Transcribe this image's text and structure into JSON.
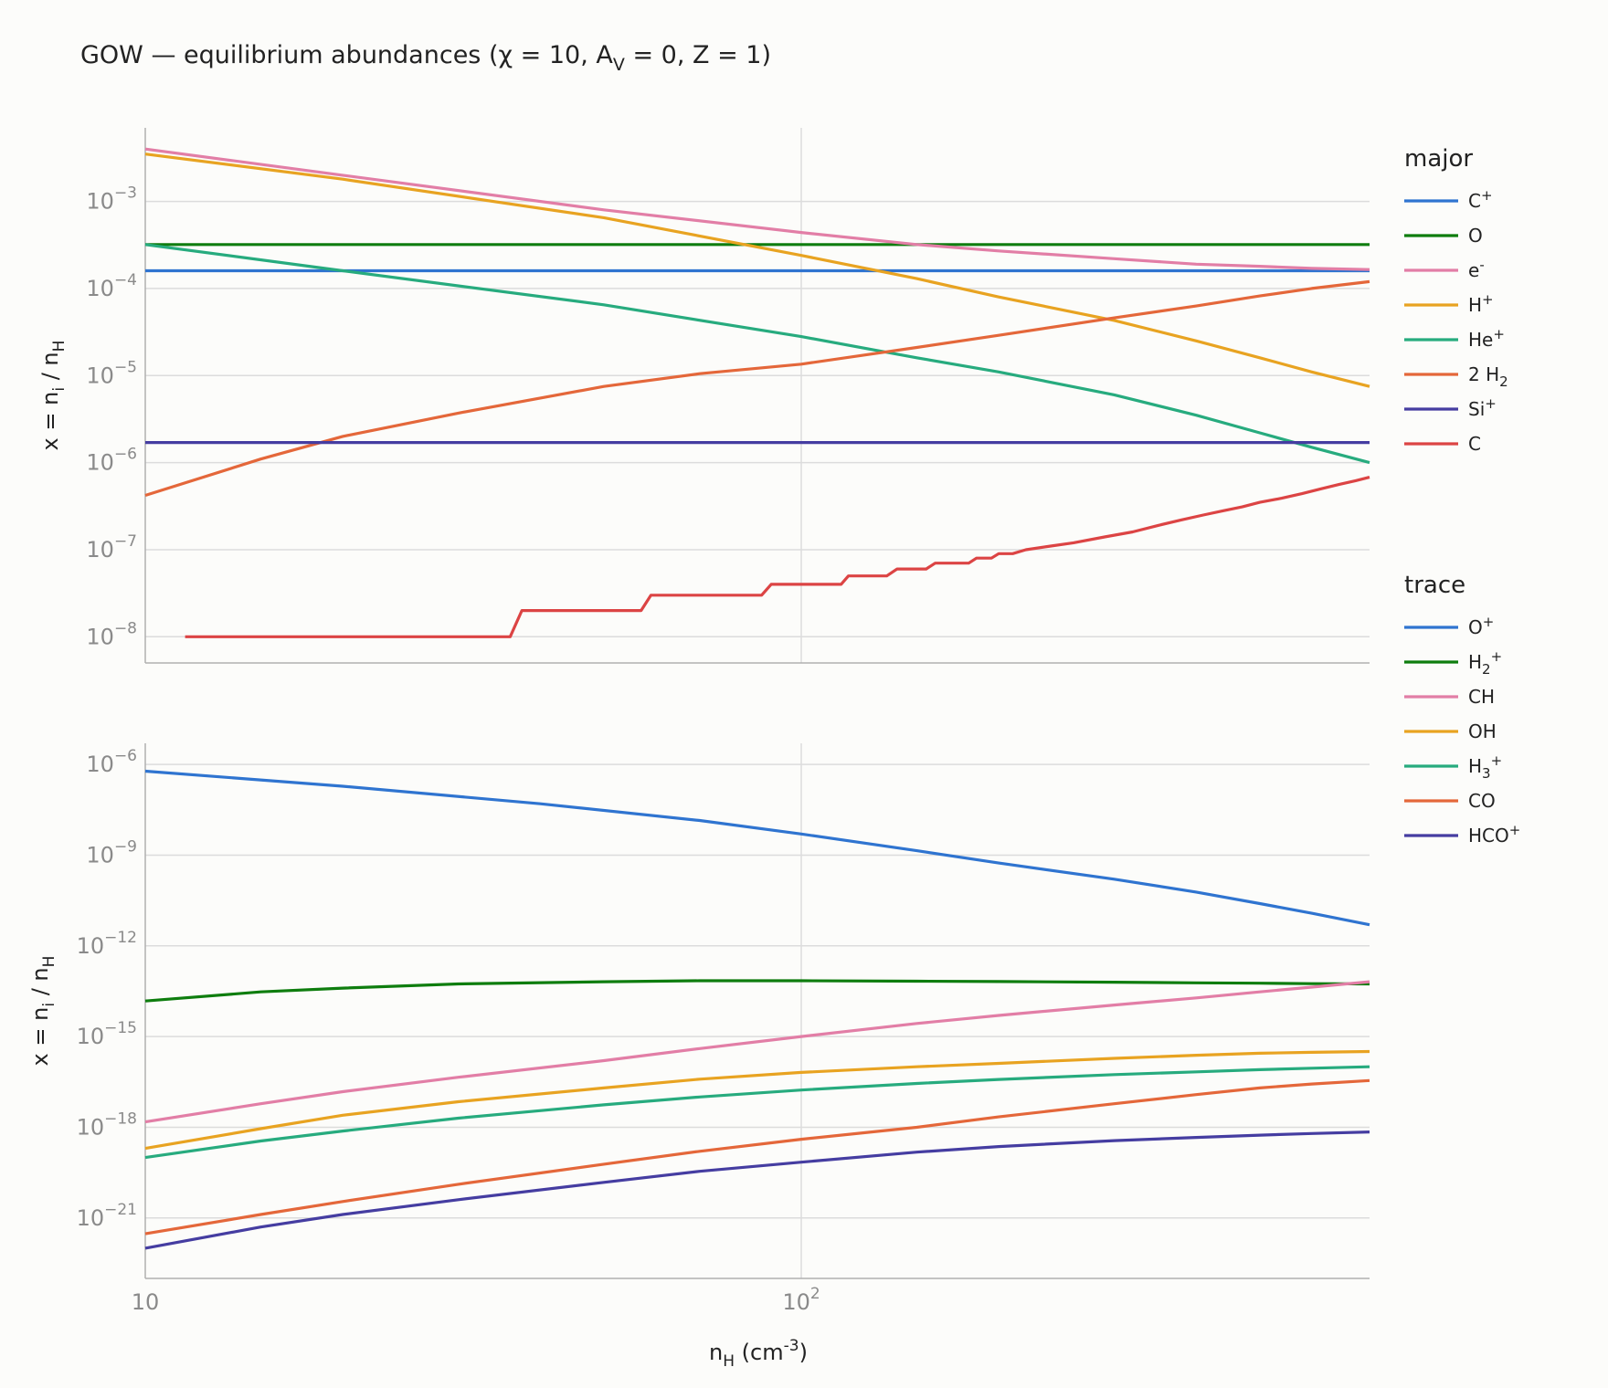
{
  "title": "GOW — equilibrium abundances (χ = 10, A_V = 0, Z = 1)",
  "chart_data": [
    {
      "panel": "top",
      "type": "line",
      "legend_title": "major",
      "legend_placement": "right",
      "xlabel": "",
      "ylabel": "x = n_i / n_H",
      "x_scale": "log",
      "y_scale": "log",
      "xlim": [
        10,
        735
      ],
      "ylim": [
        5e-09,
        0.007
      ],
      "yticks": [
        "1e-3",
        "1e-4",
        "1e-5",
        "1e-6",
        "1e-7",
        "1e-8"
      ],
      "grid": true,
      "series": [
        {
          "name": "C+",
          "color": "#2f74d0",
          "x": [
            10,
            735
          ],
          "y": [
            0.00016,
            0.00016
          ]
        },
        {
          "name": "O",
          "color": "#0e7d0e",
          "x": [
            10,
            735
          ],
          "y": [
            0.00032,
            0.00032
          ]
        },
        {
          "name": "e-",
          "color": "#e27ea6",
          "x": [
            10,
            20,
            50,
            100,
            150,
            200,
            300,
            400,
            500,
            600,
            735
          ],
          "y": [
            0.004,
            0.002,
            0.0008,
            0.00044,
            0.00032,
            0.00027,
            0.00022,
            0.00019,
            0.00018,
            0.00017,
            0.000165
          ]
        },
        {
          "name": "H+",
          "color": "#e8a321",
          "x": [
            10,
            20,
            50,
            100,
            150,
            200,
            300,
            400,
            500,
            600,
            735
          ],
          "y": [
            0.0035,
            0.0018,
            0.00065,
            0.00024,
            0.00013,
            8e-05,
            4.3e-05,
            2.5e-05,
            1.6e-05,
            1.1e-05,
            7.5e-06
          ]
        },
        {
          "name": "He+",
          "color": "#27ab7e",
          "x": [
            10,
            20,
            50,
            100,
            150,
            200,
            300,
            400,
            500,
            600,
            735
          ],
          "y": [
            0.00032,
            0.00016,
            6.5e-05,
            2.8e-05,
            1.6e-05,
            1.1e-05,
            6e-06,
            3.5e-06,
            2.2e-06,
            1.5e-06,
            1e-06
          ]
        },
        {
          "name": "2 H2",
          "color": "#e4673a",
          "x": [
            10,
            15,
            20,
            30,
            50,
            70,
            100,
            150,
            200,
            300,
            400,
            500,
            600,
            735
          ],
          "y": [
            4.2e-07,
            1.1e-06,
            2e-06,
            3.7e-06,
            7.5e-06,
            1.05e-05,
            1.35e-05,
            2.1e-05,
            2.9e-05,
            4.6e-05,
            6.3e-05,
            8.2e-05,
            0.0001,
            0.00012
          ]
        },
        {
          "name": "Si+",
          "color": "#453da1",
          "x": [
            10,
            735
          ],
          "y": [
            1.7e-06,
            1.7e-06
          ]
        },
        {
          "name": "C",
          "color": "#dc4444",
          "x": [
            11.5,
            36,
            37.5,
            57,
            59,
            87,
            90,
            115,
            118,
            135,
            140,
            155,
            160,
            180,
            185,
            195,
            200,
            210,
            220,
            240,
            260,
            290,
            320,
            350,
            380,
            410,
            440,
            470,
            500,
            540,
            580,
            620,
            660,
            700,
            735
          ],
          "y": [
            1e-08,
            1e-08,
            2e-08,
            2e-08,
            3e-08,
            3e-08,
            4e-08,
            4e-08,
            5e-08,
            5e-08,
            6e-08,
            6e-08,
            7e-08,
            7e-08,
            8e-08,
            8e-08,
            9e-08,
            9e-08,
            1e-07,
            1.1e-07,
            1.2e-07,
            1.4e-07,
            1.6e-07,
            1.9e-07,
            2.2e-07,
            2.5e-07,
            2.8e-07,
            3.1e-07,
            3.5e-07,
            3.9e-07,
            4.4e-07,
            5e-07,
            5.6e-07,
            6.2e-07,
            6.8e-07
          ]
        }
      ]
    },
    {
      "panel": "bottom",
      "type": "line",
      "legend_title": "trace",
      "legend_placement": "right",
      "xlabel": "n_H (cm^-3)",
      "ylabel": "x = n_i / n_H",
      "x_scale": "log",
      "y_scale": "log",
      "xlim": [
        10,
        735
      ],
      "ylim": [
        1e-23,
        5e-06
      ],
      "yticks": [
        "1e-6",
        "1e-9",
        "1e-12",
        "1e-15",
        "1e-18",
        "1e-21"
      ],
      "xticks": [
        "10",
        "10^2"
      ],
      "grid": true,
      "series": [
        {
          "name": "O+",
          "color": "#2f74d0",
          "x": [
            10,
            20,
            40,
            70,
            100,
            150,
            200,
            300,
            400,
            500,
            600,
            735
          ],
          "y": [
            6e-07,
            1.9e-07,
            5e-08,
            1.4e-08,
            5e-09,
            1.4e-09,
            5.5e-10,
            1.6e-10,
            6e-11,
            2.5e-11,
            1.2e-11,
            5e-12
          ]
        },
        {
          "name": "H2+",
          "color": "#0e7d0e",
          "x": [
            10,
            15,
            20,
            30,
            50,
            70,
            100,
            150,
            200,
            300,
            400,
            500,
            600,
            735
          ],
          "y": [
            1.5e-14,
            3e-14,
            4e-14,
            5.5e-14,
            6.5e-14,
            7e-14,
            7e-14,
            6.8e-14,
            6.6e-14,
            6.3e-14,
            6e-14,
            5.8e-14,
            5.6e-14,
            5.5e-14
          ]
        },
        {
          "name": "CH",
          "color": "#e27ea6",
          "x": [
            10,
            15,
            20,
            30,
            50,
            70,
            100,
            150,
            200,
            300,
            400,
            500,
            600,
            735
          ],
          "y": [
            1.5e-18,
            6e-18,
            1.5e-17,
            4.5e-17,
            1.6e-16,
            4e-16,
            1e-15,
            2.7e-15,
            5e-15,
            1.1e-14,
            1.9e-14,
            3e-14,
            4.3e-14,
            6.5e-14
          ]
        },
        {
          "name": "OH",
          "color": "#e8a321",
          "x": [
            10,
            15,
            20,
            30,
            50,
            70,
            100,
            150,
            200,
            300,
            400,
            500,
            600,
            735
          ],
          "y": [
            2e-19,
            9e-19,
            2.5e-18,
            7e-18,
            2e-17,
            3.9e-17,
            6.5e-17,
            1e-16,
            1.3e-16,
            1.9e-16,
            2.4e-16,
            2.8e-16,
            3e-16,
            3.2e-16
          ]
        },
        {
          "name": "H3+",
          "color": "#27ab7e",
          "x": [
            10,
            15,
            20,
            30,
            50,
            70,
            100,
            150,
            200,
            300,
            400,
            500,
            600,
            735
          ],
          "y": [
            1e-19,
            3.5e-19,
            7.5e-19,
            2e-18,
            5.5e-18,
            1e-17,
            1.7e-17,
            2.8e-17,
            3.8e-17,
            5.5e-17,
            6.8e-17,
            8e-17,
            9e-17,
            1e-16
          ]
        },
        {
          "name": "CO",
          "color": "#e4673a",
          "x": [
            10,
            15,
            20,
            30,
            50,
            70,
            100,
            150,
            200,
            300,
            400,
            500,
            600,
            735
          ],
          "y": [
            3e-22,
            1.3e-21,
            3.5e-21,
            1.3e-20,
            6e-20,
            1.6e-19,
            4e-19,
            1e-18,
            2.2e-18,
            6e-18,
            1.2e-17,
            2e-17,
            2.7e-17,
            3.5e-17
          ]
        },
        {
          "name": "HCO+",
          "color": "#453da1",
          "x": [
            10,
            15,
            20,
            30,
            50,
            70,
            100,
            150,
            200,
            300,
            400,
            500,
            600,
            735
          ],
          "y": [
            1e-22,
            5e-22,
            1.3e-21,
            4e-21,
            1.5e-20,
            3.5e-20,
            7e-20,
            1.5e-19,
            2.3e-19,
            3.6e-19,
            4.6e-19,
            5.5e-19,
            6.2e-19,
            7e-19
          ]
        }
      ]
    }
  ]
}
